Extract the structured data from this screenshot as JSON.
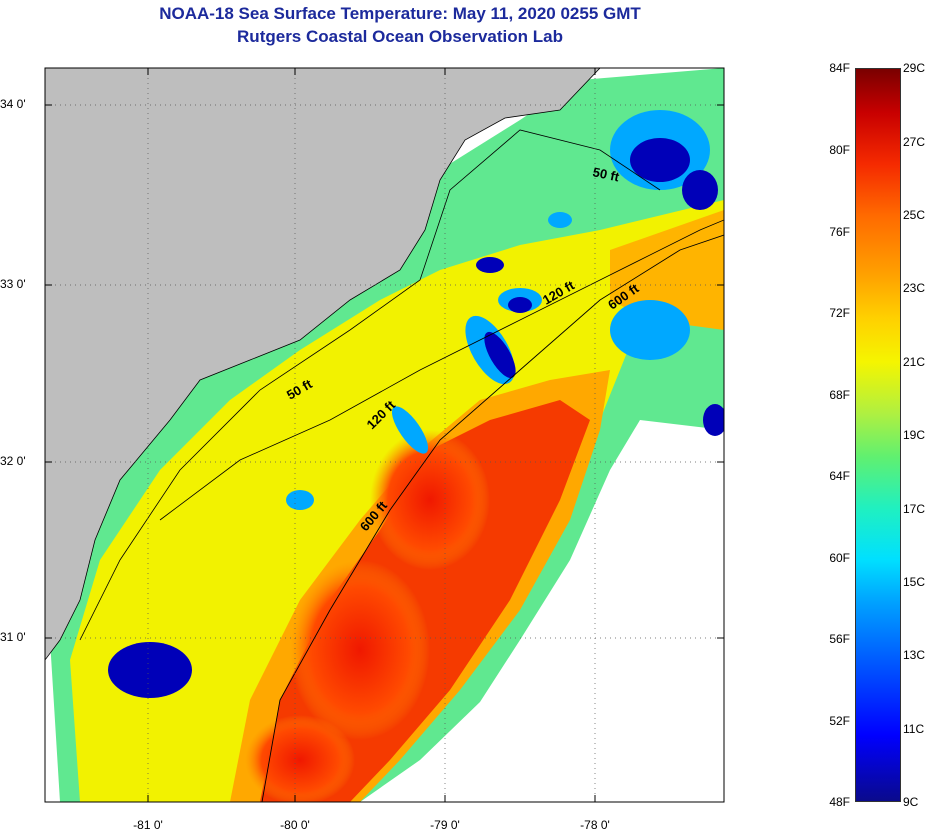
{
  "title": {
    "line1": "NOAA-18 Sea Surface Temperature:  May 11, 2020 0255 GMT",
    "line2": "Rutgers Coastal Ocean Observation Lab"
  },
  "map": {
    "lat_labels": [
      "34 0'",
      "33 0'",
      "32 0'",
      "31 0'"
    ],
    "lon_labels": [
      "-81 0'",
      "-80 0'",
      "-79 0'",
      "-78 0'"
    ],
    "isobath_labels": [
      "50 ft",
      "120 ft",
      "600 ft",
      "50 ft",
      "120 ft",
      "600 ft"
    ],
    "colors": {
      "land": "#bebebe",
      "no_data": "#ffffff",
      "cold": "#0000b0",
      "cool": "#00c8ff",
      "mild": "#40e890",
      "warm": "#f5f500",
      "hot": "#ff3000"
    }
  },
  "colorbar": {
    "fahrenheit": [
      "84F",
      "80F",
      "76F",
      "72F",
      "68F",
      "64F",
      "60F",
      "56F",
      "52F",
      "48F"
    ],
    "celsius": [
      "29C",
      "27C",
      "25C",
      "23C",
      "21C",
      "19C",
      "17C",
      "15C",
      "13C",
      "11C",
      "9C"
    ]
  }
}
